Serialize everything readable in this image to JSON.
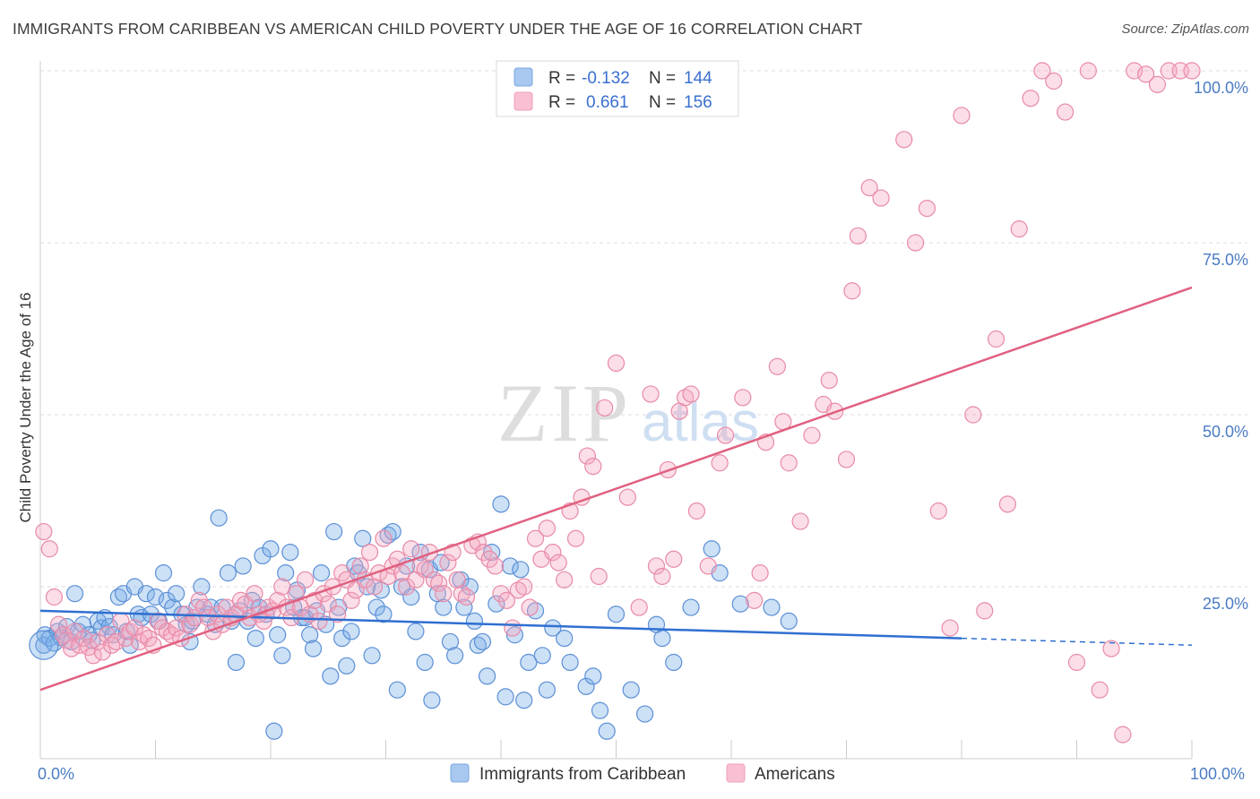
{
  "title": "IMMIGRANTS FROM CARIBBEAN VS AMERICAN CHILD POVERTY UNDER THE AGE OF 16 CORRELATION CHART",
  "source": "Source: ZipAtlas.com",
  "watermark": {
    "zip": "ZIP",
    "atlas": "atlas"
  },
  "chart_data": {
    "type": "scatter",
    "xlabel": "",
    "ylabel": "Child Poverty Under the Age of 16",
    "xlim": [
      0,
      100
    ],
    "ylim": [
      0,
      100
    ],
    "x_tick_labels": [
      "0.0%",
      "100.0%"
    ],
    "y_ticks": [
      25,
      50,
      75,
      100
    ],
    "y_tick_labels": [
      "25.0%",
      "50.0%",
      "75.0%",
      "100.0%"
    ],
    "grid": "horizontal dashed",
    "legend_position": "top-center",
    "series": [
      {
        "name": "Immigrants from Caribbean",
        "color": "#7aaee8",
        "stroke": "#5b8fd6",
        "line_color": "#2f6fd1",
        "R": "-0.132",
        "N": "144",
        "trend": {
          "x": [
            0,
            100
          ],
          "y": [
            21.5,
            16.5
          ],
          "solid_until": 80
        },
        "points": [
          [
            0.3,
            16.5
          ],
          [
            0.4,
            18
          ],
          [
            0.8,
            17.5
          ],
          [
            1.2,
            16.8
          ],
          [
            1.5,
            18.5
          ],
          [
            1.8,
            17.6
          ],
          [
            2.3,
            19.2
          ],
          [
            2.7,
            17
          ],
          [
            3,
            24
          ],
          [
            3.3,
            18.5
          ],
          [
            3.7,
            19.5
          ],
          [
            4.2,
            18
          ],
          [
            4.5,
            17.2
          ],
          [
            5,
            20
          ],
          [
            5.3,
            19
          ],
          [
            5.6,
            20.5
          ],
          [
            6,
            19.2
          ],
          [
            6.3,
            18
          ],
          [
            6.8,
            23.5
          ],
          [
            7.2,
            24
          ],
          [
            7.5,
            18.5
          ],
          [
            7.8,
            16.5
          ],
          [
            8.2,
            25
          ],
          [
            8.5,
            21
          ],
          [
            8.8,
            20.5
          ],
          [
            9.2,
            24
          ],
          [
            9.6,
            21
          ],
          [
            10,
            23.5
          ],
          [
            10.3,
            20
          ],
          [
            10.7,
            27
          ],
          [
            11,
            23
          ],
          [
            11.5,
            22
          ],
          [
            11.8,
            24
          ],
          [
            12.3,
            21
          ],
          [
            12.7,
            19.5
          ],
          [
            13,
            17
          ],
          [
            13.2,
            20
          ],
          [
            13.6,
            22
          ],
          [
            14,
            25
          ],
          [
            14.5,
            21
          ],
          [
            14.8,
            22
          ],
          [
            15.2,
            19.5
          ],
          [
            15.5,
            35
          ],
          [
            15.8,
            22
          ],
          [
            16.3,
            27
          ],
          [
            16.6,
            20
          ],
          [
            17,
            14
          ],
          [
            17.3,
            21.5
          ],
          [
            17.6,
            28
          ],
          [
            18,
            20
          ],
          [
            18.4,
            23
          ],
          [
            18.7,
            17.5
          ],
          [
            19,
            22
          ],
          [
            19.3,
            29.5
          ],
          [
            19.6,
            21
          ],
          [
            20,
            30.5
          ],
          [
            20.3,
            4
          ],
          [
            20.6,
            18
          ],
          [
            21,
            15
          ],
          [
            21.3,
            27
          ],
          [
            21.7,
            30
          ],
          [
            22,
            22
          ],
          [
            22.3,
            24.5
          ],
          [
            22.7,
            20.5
          ],
          [
            23,
            20.5
          ],
          [
            23.4,
            18
          ],
          [
            23.7,
            16
          ],
          [
            24,
            21.5
          ],
          [
            24.4,
            27
          ],
          [
            24.8,
            19.5
          ],
          [
            25.2,
            12
          ],
          [
            25.5,
            33
          ],
          [
            25.9,
            22
          ],
          [
            26.2,
            17.5
          ],
          [
            26.6,
            13.5
          ],
          [
            27,
            18.5
          ],
          [
            27.3,
            28
          ],
          [
            27.6,
            27
          ],
          [
            28,
            32
          ],
          [
            28.4,
            25
          ],
          [
            28.8,
            15
          ],
          [
            29.2,
            22
          ],
          [
            29.6,
            24.5
          ],
          [
            29.8,
            21
          ],
          [
            30.2,
            32.5
          ],
          [
            30.6,
            33
          ],
          [
            31,
            10
          ],
          [
            31.4,
            25
          ],
          [
            31.8,
            28
          ],
          [
            32.2,
            23.5
          ],
          [
            32.6,
            18.5
          ],
          [
            33,
            30
          ],
          [
            33.4,
            14
          ],
          [
            33.8,
            27.5
          ],
          [
            34,
            8.5
          ],
          [
            34.5,
            24
          ],
          [
            34.8,
            28.5
          ],
          [
            35,
            22
          ],
          [
            35.6,
            17
          ],
          [
            36,
            15
          ],
          [
            36.5,
            26
          ],
          [
            36.8,
            22
          ],
          [
            37.3,
            25
          ],
          [
            37.7,
            20
          ],
          [
            38,
            16.5
          ],
          [
            38.4,
            17
          ],
          [
            38.8,
            12
          ],
          [
            39.2,
            30
          ],
          [
            39.6,
            22.5
          ],
          [
            40,
            37
          ],
          [
            40.4,
            9
          ],
          [
            40.8,
            28
          ],
          [
            41.2,
            18
          ],
          [
            41.7,
            27.5
          ],
          [
            42,
            8.5
          ],
          [
            42.4,
            14
          ],
          [
            43,
            21.5
          ],
          [
            43.6,
            15
          ],
          [
            44,
            10
          ],
          [
            44.5,
            19
          ],
          [
            45.5,
            17.5
          ],
          [
            46,
            14
          ],
          [
            47.4,
            10.5
          ],
          [
            48,
            12
          ],
          [
            48.6,
            7
          ],
          [
            49.2,
            4
          ],
          [
            50,
            21
          ],
          [
            51.3,
            10
          ],
          [
            52.5,
            6.5
          ],
          [
            53.5,
            19.5
          ],
          [
            54,
            17.5
          ],
          [
            55,
            14
          ],
          [
            56.5,
            22
          ],
          [
            58.3,
            30.5
          ],
          [
            59,
            27
          ],
          [
            60.8,
            22.5
          ],
          [
            63.5,
            22
          ],
          [
            65,
            20
          ]
        ]
      },
      {
        "name": "Americans",
        "color": "#f5a8c0",
        "stroke": "#e88aa8",
        "line_color": "#e0607f",
        "R": "0.661",
        "N": "156",
        "trend": {
          "x": [
            0,
            100
          ],
          "y": [
            10,
            68.5
          ]
        },
        "points": [
          [
            0.3,
            33
          ],
          [
            0.8,
            30.5
          ],
          [
            1.2,
            23.5
          ],
          [
            1.6,
            19.5
          ],
          [
            2,
            18
          ],
          [
            2.3,
            17.2
          ],
          [
            2.7,
            16
          ],
          [
            3,
            18.5
          ],
          [
            3.4,
            16.5
          ],
          [
            3.8,
            17.5
          ],
          [
            4.2,
            16.2
          ],
          [
            4.6,
            15
          ],
          [
            5,
            17
          ],
          [
            5.4,
            15.5
          ],
          [
            5.8,
            18
          ],
          [
            6.2,
            16.5
          ],
          [
            6.6,
            17
          ],
          [
            7,
            20
          ],
          [
            7.4,
            17.5
          ],
          [
            7.8,
            18.5
          ],
          [
            8.2,
            19
          ],
          [
            8.6,
            17
          ],
          [
            9,
            18
          ],
          [
            9.4,
            17.5
          ],
          [
            9.8,
            16.5
          ],
          [
            10.2,
            20
          ],
          [
            10.6,
            19
          ],
          [
            11,
            18.5
          ],
          [
            11.4,
            18
          ],
          [
            11.8,
            19
          ],
          [
            12.2,
            17.5
          ],
          [
            12.6,
            21
          ],
          [
            13,
            19.5
          ],
          [
            13.4,
            20.5
          ],
          [
            13.8,
            23
          ],
          [
            14.2,
            22
          ],
          [
            14.6,
            20.5
          ],
          [
            15,
            18.5
          ],
          [
            15.4,
            21
          ],
          [
            15.8,
            19.5
          ],
          [
            16.2,
            22
          ],
          [
            16.6,
            20.5
          ],
          [
            17,
            21
          ],
          [
            17.4,
            23
          ],
          [
            17.8,
            22.5
          ],
          [
            18.2,
            20.5
          ],
          [
            18.6,
            24
          ],
          [
            19,
            21
          ],
          [
            19.4,
            20
          ],
          [
            19.8,
            22
          ],
          [
            20.2,
            21.5
          ],
          [
            20.6,
            23
          ],
          [
            21,
            25
          ],
          [
            21.4,
            22
          ],
          [
            21.8,
            20.5
          ],
          [
            22.2,
            24
          ],
          [
            22.6,
            22
          ],
          [
            23,
            26
          ],
          [
            23.4,
            21
          ],
          [
            23.8,
            23
          ],
          [
            24.2,
            20
          ],
          [
            24.6,
            24
          ],
          [
            25,
            22.5
          ],
          [
            25.4,
            25
          ],
          [
            25.8,
            21
          ],
          [
            26.2,
            27
          ],
          [
            26.6,
            26
          ],
          [
            27,
            23
          ],
          [
            27.4,
            24.5
          ],
          [
            27.8,
            28
          ],
          [
            28.2,
            26
          ],
          [
            28.6,
            30
          ],
          [
            29,
            25
          ],
          [
            29.4,
            27
          ],
          [
            29.8,
            32
          ],
          [
            30.2,
            26.5
          ],
          [
            30.6,
            28
          ],
          [
            31,
            29
          ],
          [
            31.4,
            27
          ],
          [
            31.8,
            25
          ],
          [
            32.2,
            30.5
          ],
          [
            32.6,
            26
          ],
          [
            33,
            28
          ],
          [
            33.4,
            27.5
          ],
          [
            33.8,
            30
          ],
          [
            34.2,
            26
          ],
          [
            34.6,
            25.5
          ],
          [
            35,
            24
          ],
          [
            35.4,
            28.5
          ],
          [
            35.8,
            30
          ],
          [
            36.2,
            26
          ],
          [
            36.6,
            24
          ],
          [
            37,
            23.5
          ],
          [
            37.5,
            31
          ],
          [
            38,
            31.5
          ],
          [
            38.5,
            30
          ],
          [
            39,
            29
          ],
          [
            39.5,
            28
          ],
          [
            40,
            24
          ],
          [
            40.5,
            23
          ],
          [
            41,
            19
          ],
          [
            41.5,
            24.5
          ],
          [
            42,
            25
          ],
          [
            42.5,
            22
          ],
          [
            43,
            32
          ],
          [
            43.5,
            29
          ],
          [
            44,
            33.5
          ],
          [
            44.5,
            30
          ],
          [
            45,
            28.5
          ],
          [
            45.5,
            26
          ],
          [
            46,
            36
          ],
          [
            46.5,
            32
          ],
          [
            47,
            38
          ],
          [
            47.5,
            44
          ],
          [
            48,
            42.5
          ],
          [
            48.5,
            26.5
          ],
          [
            49,
            51
          ],
          [
            50,
            57.5
          ],
          [
            51,
            38
          ],
          [
            52,
            22
          ],
          [
            53,
            53
          ],
          [
            53.5,
            28
          ],
          [
            54,
            26.5
          ],
          [
            54.5,
            42
          ],
          [
            55,
            29
          ],
          [
            55.5,
            50.5
          ],
          [
            56,
            52.5
          ],
          [
            56.5,
            53
          ],
          [
            57,
            36
          ],
          [
            58,
            28
          ],
          [
            59,
            43
          ],
          [
            59.5,
            47
          ],
          [
            61,
            52.5
          ],
          [
            62,
            23
          ],
          [
            62.5,
            27
          ],
          [
            63,
            46
          ],
          [
            64,
            57
          ],
          [
            64.5,
            49
          ],
          [
            65,
            43
          ],
          [
            66,
            34.5
          ],
          [
            67,
            47
          ],
          [
            68,
            51.5
          ],
          [
            68.5,
            55
          ],
          [
            69,
            50.5
          ],
          [
            70,
            43.5
          ],
          [
            70.5,
            68
          ],
          [
            71,
            76
          ],
          [
            72,
            83
          ],
          [
            73,
            81.5
          ],
          [
            75,
            90
          ],
          [
            76,
            75
          ],
          [
            77,
            80
          ],
          [
            78,
            36
          ],
          [
            79,
            19
          ],
          [
            80,
            93.5
          ],
          [
            81,
            50
          ],
          [
            82,
            21.5
          ],
          [
            83,
            61
          ],
          [
            84,
            37
          ],
          [
            85,
            77
          ],
          [
            86,
            96
          ],
          [
            87,
            100
          ],
          [
            88,
            98.5
          ],
          [
            89,
            94
          ],
          [
            90,
            14
          ],
          [
            91,
            100
          ],
          [
            92,
            10
          ],
          [
            93,
            16
          ],
          [
            94,
            3.5
          ],
          [
            95,
            100
          ],
          [
            96,
            99.5
          ],
          [
            97,
            98
          ],
          [
            98,
            100
          ],
          [
            99,
            100
          ],
          [
            100,
            100
          ]
        ]
      }
    ]
  }
}
